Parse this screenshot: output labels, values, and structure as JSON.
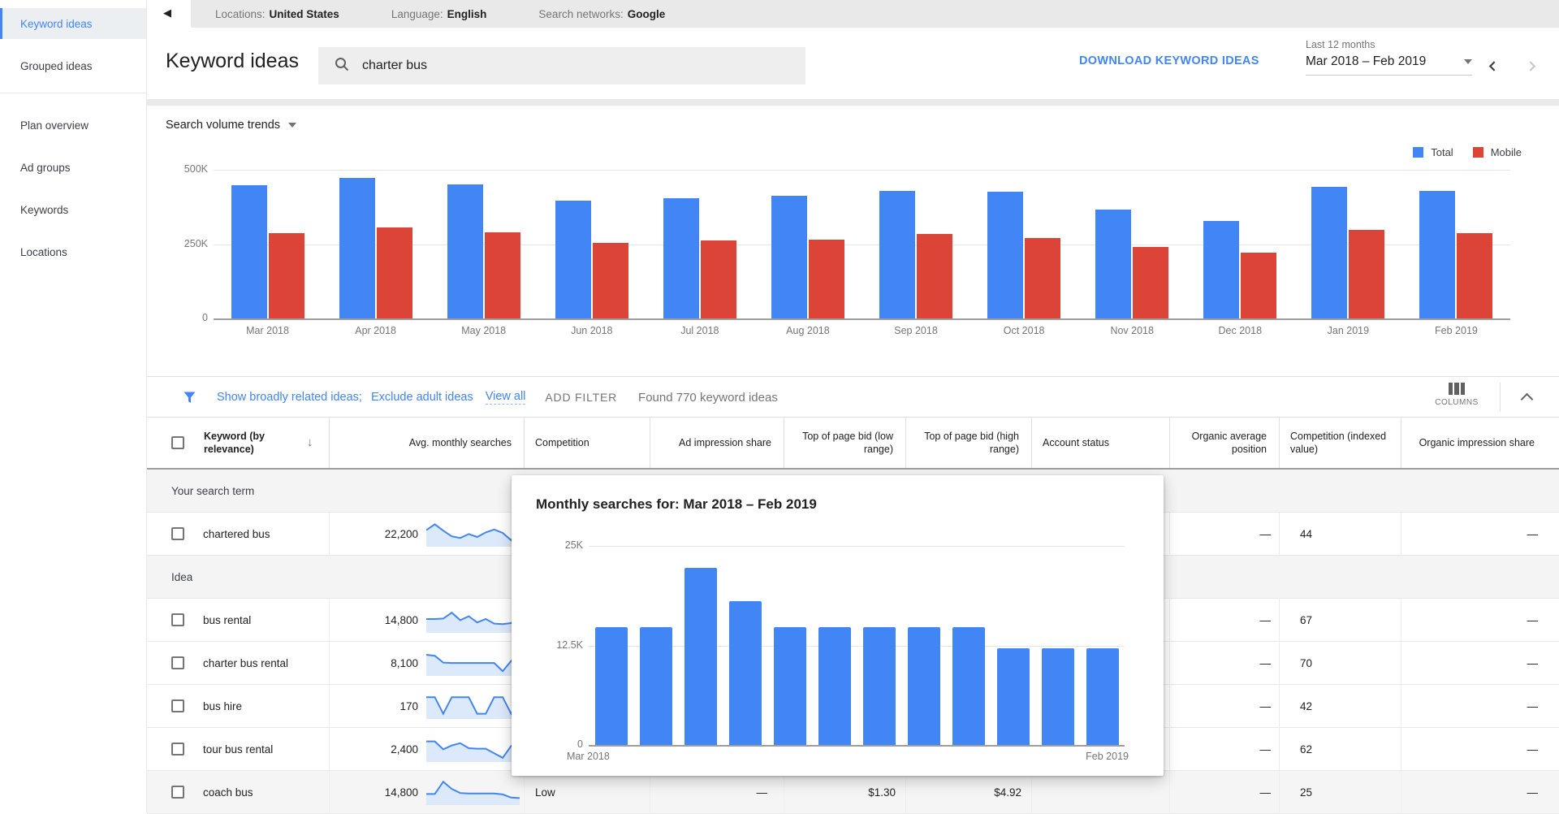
{
  "topbar": {
    "settings": [
      {
        "label": "Locations:",
        "value": "United States"
      },
      {
        "label": "Language:",
        "value": "English"
      },
      {
        "label": "Search networks:",
        "value": "Google"
      }
    ]
  },
  "sidebar": {
    "group1": [
      {
        "label": "Keyword ideas",
        "active": true
      },
      {
        "label": "Grouped ideas",
        "active": false
      }
    ],
    "group2": [
      {
        "label": "Plan overview",
        "active": false
      },
      {
        "label": "Ad groups",
        "active": false
      },
      {
        "label": "Keywords",
        "active": false
      },
      {
        "label": "Locations",
        "active": false
      }
    ]
  },
  "header": {
    "title": "Keyword ideas",
    "search_value": "charter bus",
    "download_label": "DOWNLOAD KEYWORD IDEAS",
    "date_label": "Last 12 months",
    "date_value": "Mar 2018 – Feb 2019"
  },
  "trends": {
    "label": "Search volume trends"
  },
  "filter_bar": {
    "filters": [
      "Show broadly related ideas;",
      "Exclude adult ideas"
    ],
    "view_all": "View all",
    "add_filter": "ADD FILTER",
    "found": "Found 770 keyword ideas",
    "columns_label": "COLUMNS"
  },
  "chart_data": [
    {
      "name": "search-volume-trends",
      "type": "bar",
      "categories": [
        "Mar 2018",
        "Apr 2018",
        "May 2018",
        "Jun 2018",
        "Jul 2018",
        "Aug 2018",
        "Sep 2018",
        "Oct 2018",
        "Nov 2018",
        "Dec 2018",
        "Jan 2019",
        "Feb 2019"
      ],
      "series": [
        {
          "name": "Total",
          "color": "#4285f4",
          "values": [
            447000,
            472000,
            450000,
            396000,
            404000,
            413000,
            430000,
            425000,
            367000,
            327000,
            444000,
            428000
          ]
        },
        {
          "name": "Mobile",
          "color": "#db4437",
          "values": [
            287000,
            305000,
            290000,
            254000,
            261000,
            266000,
            285000,
            270000,
            240000,
            222000,
            299000,
            287000
          ]
        }
      ],
      "ylim": [
        0,
        500000
      ],
      "yticks": [
        {
          "label": "500K",
          "value": 500000
        },
        {
          "label": "250K",
          "value": 250000
        },
        {
          "label": "0",
          "value": 0
        }
      ],
      "legend_position": "top-right",
      "grid": true
    },
    {
      "name": "monthly-searches-popup",
      "type": "bar",
      "title": "Monthly searches for: Mar 2018 – Feb 2019",
      "categories": [
        "Mar 2018",
        "Apr 2018",
        "May 2018",
        "Jun 2018",
        "Jul 2018",
        "Aug 2018",
        "Sep 2018",
        "Oct 2018",
        "Nov 2018",
        "Dec 2018",
        "Jan 2019",
        "Feb 2019"
      ],
      "values": [
        14800,
        14800,
        22200,
        18100,
        14800,
        14800,
        14800,
        14800,
        14800,
        12100,
        12100,
        12100
      ],
      "bar_color": "#4285f4",
      "ylim": [
        0,
        25000
      ],
      "yticks": [
        {
          "label": "25K",
          "value": 25000
        },
        {
          "label": "12.5K",
          "value": 12500
        },
        {
          "label": "0",
          "value": 0
        }
      ],
      "xlabels_shown": [
        "Mar 2018",
        "Feb 2019"
      ]
    }
  ],
  "table": {
    "columns": [
      "Keyword (by relevance)",
      "Avg. monthly searches",
      "Competition",
      "Ad impression share",
      "Top of page bid (low range)",
      "Top of page bid (high range)",
      "Account status",
      "Organic average position",
      "Competition (indexed value)",
      "Organic impression share"
    ],
    "groups": [
      {
        "header": "Your search term",
        "rows": [
          {
            "keyword": "chartered bus",
            "avg_monthly_searches": "22,200",
            "spark": [
              0.62,
              0.88,
              0.6,
              0.35,
              0.28,
              0.45,
              0.32,
              0.52,
              0.65,
              0.5,
              0.18,
              0.68
            ],
            "competition": "",
            "ad_impression_share": "",
            "top_bid_low": "",
            "top_bid_high": "",
            "account_status": "",
            "organic_average_position": "—",
            "competition_indexed": "44",
            "organic_impression_share": "—",
            "highlighted": false
          }
        ]
      },
      {
        "header": "Idea",
        "rows": [
          {
            "keyword": "bus rental",
            "avg_monthly_searches": "14,800",
            "spark": [
              0.5,
              0.5,
              0.52,
              0.78,
              0.45,
              0.62,
              0.35,
              0.5,
              0.3,
              0.28,
              0.32,
              0.7
            ],
            "competition": "",
            "ad_impression_share": "",
            "top_bid_low": "",
            "top_bid_high": "",
            "account_status": "",
            "organic_average_position": "—",
            "competition_indexed": "67",
            "organic_impression_share": "—",
            "highlighted": false
          },
          {
            "keyword": "charter bus rental",
            "avg_monthly_searches": "8,100",
            "spark": [
              0.82,
              0.78,
              0.48,
              0.46,
              0.46,
              0.46,
              0.46,
              0.46,
              0.46,
              0.1,
              0.55,
              0.85
            ],
            "competition": "",
            "ad_impression_share": "",
            "top_bid_low": "",
            "top_bid_high": "",
            "account_status": "",
            "organic_average_position": "—",
            "competition_indexed": "70",
            "organic_impression_share": "—",
            "highlighted": false
          },
          {
            "keyword": "bus hire",
            "avg_monthly_searches": "170",
            "spark": [
              0.85,
              0.85,
              0.12,
              0.85,
              0.85,
              0.85,
              0.12,
              0.12,
              0.85,
              0.85,
              0.12,
              0.85
            ],
            "competition": "",
            "ad_impression_share": "",
            "top_bid_low": "",
            "top_bid_high": "",
            "account_status": "",
            "organic_average_position": "—",
            "competition_indexed": "42",
            "organic_impression_share": "—",
            "highlighted": false
          },
          {
            "keyword": "tour bus rental",
            "avg_monthly_searches": "2,400",
            "spark": [
              0.8,
              0.8,
              0.45,
              0.62,
              0.72,
              0.5,
              0.48,
              0.48,
              0.28,
              0.08,
              0.6,
              0.82
            ],
            "competition": "",
            "ad_impression_share": "",
            "top_bid_low": "",
            "top_bid_high": "",
            "account_status": "",
            "organic_average_position": "—",
            "competition_indexed": "62",
            "organic_impression_share": "—",
            "highlighted": false
          },
          {
            "keyword": "coach bus",
            "avg_monthly_searches": "14,800",
            "spark": [
              0.38,
              0.38,
              0.92,
              0.6,
              0.42,
              0.4,
              0.4,
              0.4,
              0.4,
              0.36,
              0.22,
              0.2
            ],
            "competition": "Low",
            "ad_impression_share": "—",
            "top_bid_low": "$1.30",
            "top_bid_high": "$4.92",
            "account_status": "",
            "organic_average_position": "—",
            "competition_indexed": "25",
            "organic_impression_share": "—",
            "highlighted": true
          }
        ]
      }
    ]
  },
  "popup": {
    "title": "Monthly searches for: Mar 2018 – Feb 2019"
  },
  "colors": {
    "total_bar": "#4285f4",
    "mobile_bar": "#db4437",
    "link": "#4285f4",
    "spark_line": "#4285f4",
    "spark_fill": "#dce9fb"
  }
}
